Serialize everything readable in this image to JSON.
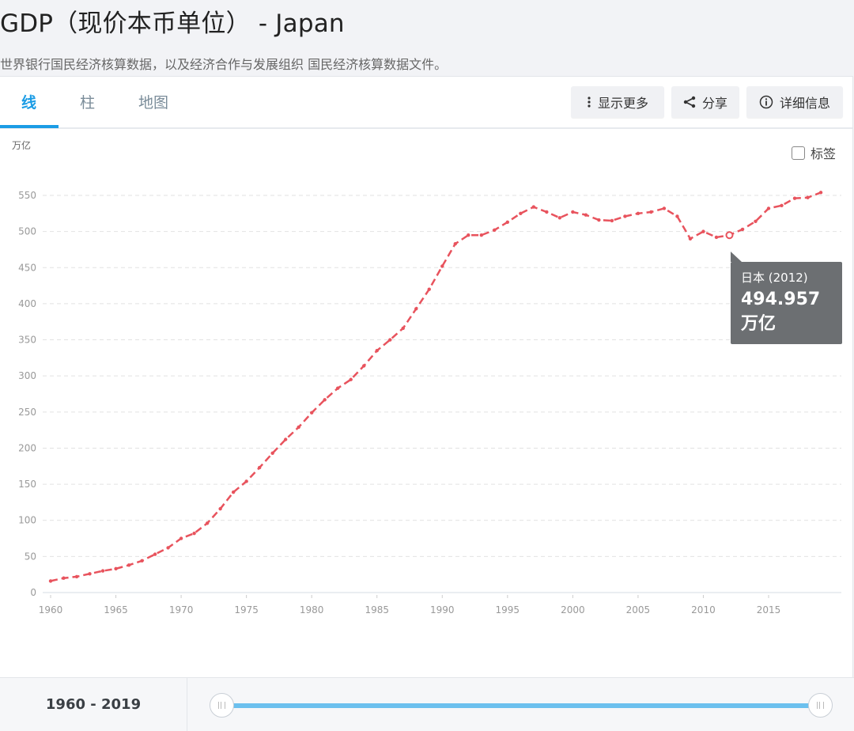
{
  "header": {
    "title": "GDP（现价本币单位） - Japan",
    "subtitle": "世界银行国民经济核算数据，以及经济合作与发展组织 国民经济核算数据文件。"
  },
  "tabs": [
    {
      "label": "线",
      "active": true
    },
    {
      "label": "柱",
      "active": false
    },
    {
      "label": "地图",
      "active": false
    }
  ],
  "toolbar": {
    "more_label": "显示更多",
    "more_icon": "vertical-dots-icon",
    "share_label": "分享",
    "share_icon": "share-icon",
    "details_label": "详细信息",
    "details_icon": "info-icon"
  },
  "chart_options": {
    "labels_toggle": "标签",
    "labels_checked": false
  },
  "tooltip": {
    "title": "日本 (2012)",
    "value": "494.957",
    "unit": "万亿"
  },
  "range": {
    "label": "1960 - 2019",
    "start": 1960,
    "end": 2019
  },
  "colors": {
    "line": "#e8535d",
    "accent": "#1b9ce5",
    "slider": "#6cc0ee",
    "tooltip_bg": "#6c6f72"
  },
  "chart_data": {
    "type": "line",
    "title": "GDP（现价本币单位） - Japan",
    "xlabel": "",
    "ylabel": "万亿",
    "ylim": [
      0,
      550
    ],
    "xlim": [
      1960,
      2019
    ],
    "yticks": [
      0,
      50,
      100,
      150,
      200,
      250,
      300,
      350,
      400,
      450,
      500,
      550
    ],
    "xticks": [
      1960,
      1965,
      1970,
      1975,
      1980,
      1985,
      1990,
      1995,
      2000,
      2005,
      2010,
      2015
    ],
    "grid": true,
    "legend": null,
    "highlighted_point": {
      "x": 2012,
      "y": 494.957,
      "label": "日本 (2012)"
    },
    "series": [
      {
        "name": "日本",
        "x": [
          1960,
          1961,
          1962,
          1963,
          1964,
          1965,
          1966,
          1967,
          1968,
          1969,
          1970,
          1971,
          1972,
          1973,
          1974,
          1975,
          1976,
          1977,
          1978,
          1979,
          1980,
          1981,
          1982,
          1983,
          1984,
          1985,
          1986,
          1987,
          1988,
          1989,
          1990,
          1991,
          1992,
          1993,
          1994,
          1995,
          1996,
          1997,
          1998,
          1999,
          2000,
          2001,
          2002,
          2003,
          2004,
          2005,
          2006,
          2007,
          2008,
          2009,
          2010,
          2011,
          2012,
          2013,
          2014,
          2015,
          2016,
          2017,
          2018,
          2019
        ],
        "values": [
          16,
          20,
          22,
          26,
          30,
          33,
          38,
          44,
          53,
          62,
          75,
          82,
          96,
          116,
          139,
          154,
          173,
          193,
          212,
          229,
          249,
          267,
          283,
          295,
          314,
          335,
          350,
          366,
          393,
          420,
          452,
          483,
          495,
          495,
          502,
          513,
          525,
          534,
          527,
          519,
          527,
          523,
          516,
          515,
          521,
          525,
          527,
          532,
          521,
          490,
          500,
          492,
          494.957,
          503,
          514,
          532,
          536,
          546,
          547,
          554
        ]
      }
    ]
  }
}
